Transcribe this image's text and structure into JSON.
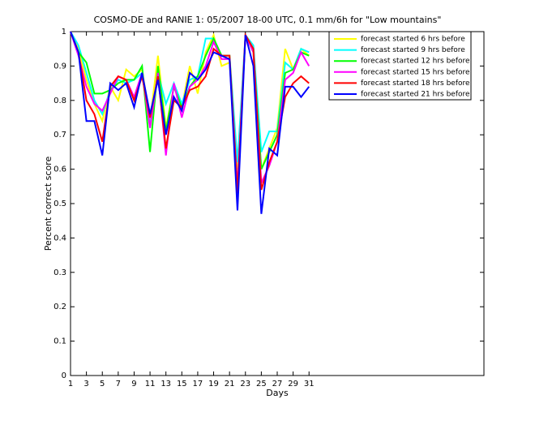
{
  "chart_data": {
    "type": "line",
    "title": "COSMO-DE and RANIE 1: 05/2007 18-00 UTC, 0.1 mm/6h for \"Low mountains\"",
    "x_label": "Days",
    "y_label": "Percent correct score",
    "x": [
      1,
      2,
      3,
      4,
      5,
      6,
      7,
      8,
      9,
      10,
      11,
      12,
      13,
      14,
      15,
      16,
      17,
      18,
      19,
      20,
      21,
      22,
      23,
      24,
      25,
      26,
      27,
      28,
      29,
      30,
      31
    ],
    "series": [
      {
        "name": "forecast started 6 hrs before",
        "color": "#ffff00",
        "values": [
          1,
          0.95,
          0.86,
          0.79,
          0.74,
          0.84,
          0.8,
          0.89,
          0.87,
          0.89,
          0.74,
          0.93,
          0.72,
          0.84,
          0.78,
          0.9,
          0.82,
          0.94,
          0.99,
          0.9,
          0.91,
          0.6,
          0.99,
          0.94,
          0.6,
          0.66,
          0.72,
          0.95,
          0.89,
          0.95,
          0.93
        ]
      },
      {
        "name": "forecast started 9 hrs before",
        "color": "#00ffff",
        "values": [
          1,
          0.96,
          0.88,
          0.8,
          0.76,
          0.83,
          0.86,
          0.85,
          0.86,
          0.88,
          0.73,
          0.88,
          0.79,
          0.85,
          0.79,
          0.86,
          0.87,
          0.98,
          0.98,
          0.93,
          0.93,
          0.62,
          0.99,
          0.96,
          0.65,
          0.71,
          0.71,
          0.91,
          0.89,
          0.95,
          0.94
        ]
      },
      {
        "name": "forecast started 12 hrs before",
        "color": "#00ff00",
        "values": [
          1,
          0.94,
          0.91,
          0.82,
          0.82,
          0.83,
          0.85,
          0.86,
          0.86,
          0.9,
          0.65,
          0.9,
          0.71,
          0.84,
          0.78,
          0.84,
          0.87,
          0.93,
          0.98,
          0.93,
          0.93,
          0.55,
          0.99,
          0.94,
          0.6,
          0.65,
          0.7,
          0.88,
          0.89,
          0.94,
          0.93
        ]
      },
      {
        "name": "forecast started 15 hrs before",
        "color": "#ff00ff",
        "values": [
          1,
          0.93,
          0.84,
          0.79,
          0.77,
          0.82,
          0.87,
          0.86,
          0.81,
          0.88,
          0.72,
          0.88,
          0.64,
          0.85,
          0.75,
          0.84,
          0.86,
          0.9,
          0.97,
          0.92,
          0.92,
          0.55,
          0.99,
          0.94,
          0.56,
          0.61,
          0.68,
          0.86,
          0.88,
          0.94,
          0.9
        ]
      },
      {
        "name": "forecast started 18 hrs before",
        "color": "#ff0000",
        "values": [
          1,
          0.94,
          0.8,
          0.76,
          0.68,
          0.84,
          0.87,
          0.86,
          0.8,
          0.87,
          0.75,
          0.87,
          0.66,
          0.8,
          0.78,
          0.83,
          0.84,
          0.87,
          0.95,
          0.93,
          0.93,
          0.53,
          0.99,
          0.95,
          0.54,
          0.62,
          0.68,
          0.81,
          0.85,
          0.87,
          0.85
        ]
      },
      {
        "name": "forecast started 21 hrs before",
        "color": "#0000ff",
        "values": [
          1,
          0.94,
          0.74,
          0.74,
          0.64,
          0.85,
          0.83,
          0.85,
          0.78,
          0.88,
          0.76,
          0.86,
          0.7,
          0.81,
          0.77,
          0.88,
          0.86,
          0.89,
          0.94,
          0.93,
          0.92,
          0.48,
          0.99,
          0.9,
          0.47,
          0.66,
          0.64,
          0.84,
          0.84,
          0.81,
          0.84
        ]
      }
    ],
    "xlim": [
      1,
      53
    ],
    "ylim": [
      0,
      1
    ],
    "xticks": [
      1,
      3,
      5,
      7,
      9,
      11,
      13,
      15,
      17,
      19,
      21,
      23,
      25,
      27,
      29,
      31
    ],
    "yticks": [
      0,
      0.1,
      0.2,
      0.3,
      0.4,
      0.5,
      0.6,
      0.7,
      0.8,
      0.9,
      1
    ],
    "legend": "top-right"
  }
}
